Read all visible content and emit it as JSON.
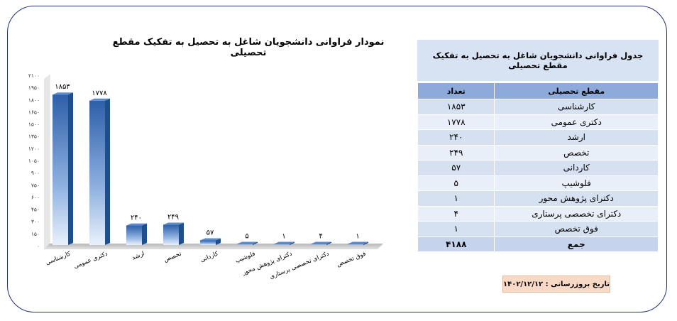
{
  "chart_data": {
    "type": "bar",
    "title": "نمودار فراوانی دانشجویان شاغل به تحصیل به تفکیک مقطع تحصیلی",
    "categories": [
      "کارشناسی",
      "دکتری عمومی",
      "ارشد",
      "تخصص",
      "کاردانی",
      "فلوشیپ",
      "دکترای پژوهش محور",
      "دکترای تخصصی پرستاری",
      "فوق تخصص"
    ],
    "values": [
      1853,
      1778,
      240,
      249,
      57,
      5,
      1,
      4,
      1
    ],
    "value_labels": [
      "۱۸۵۳",
      "۱۷۷۸",
      "۲۴۰",
      "۲۴۹",
      "۵۷",
      "۵",
      "۱",
      "۴",
      "۱"
    ],
    "ylim": [
      0,
      2100
    ],
    "yticks": [
      0,
      150,
      300,
      450,
      600,
      750,
      900,
      1050,
      1200,
      1350,
      1500,
      1650,
      1800,
      1950,
      2100
    ],
    "ytick_labels": [
      "۰",
      "۱۵۰",
      "۳۰۰",
      "۴۵۰",
      "۶۰۰",
      "۷۵۰",
      "۹۰۰",
      "۱۰۵۰",
      "۱۲۰۰",
      "۱۳۵۰",
      "۱۵۰۰",
      "۱۶۵۰",
      "۱۸۰۰",
      "۱۹۵۰",
      "۲۱۰۰"
    ],
    "bar_color": "#4f81bd",
    "grid": false
  },
  "table": {
    "title": "جدول فراوانی دانشجویان شاغل به تحصیل  به تفکیک مقطع تحصیلی",
    "col_category": "مقطع تحصیلی",
    "col_count": "تعداد",
    "rows": [
      {
        "category": "کارشناسی",
        "count": "۱۸۵۳"
      },
      {
        "category": "دکتری عمومی",
        "count": "۱۷۷۸"
      },
      {
        "category": "ارشد",
        "count": "۲۴۰"
      },
      {
        "category": "تخصص",
        "count": "۲۴۹"
      },
      {
        "category": "کاردانی",
        "count": "۵۷"
      },
      {
        "category": "فلوشیپ",
        "count": "۵"
      },
      {
        "category": "دکترای پژوهش محور",
        "count": "۱"
      },
      {
        "category": "دکترای تخصصی پرستاری",
        "count": "۴"
      },
      {
        "category": "فوق تخصص",
        "count": "۱"
      }
    ],
    "total_label": "جمع",
    "total_value": "۴۱۸۸"
  },
  "update": {
    "label": "تاریخ بروزرسانی : ۱۴۰۲/۱۲/۱۲"
  }
}
